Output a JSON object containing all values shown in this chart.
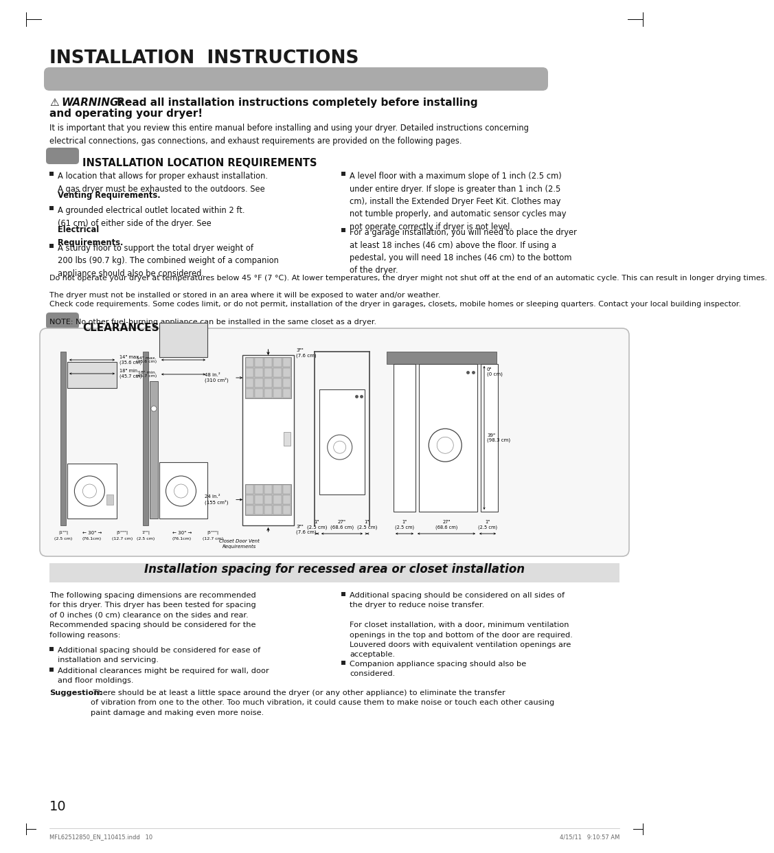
{
  "bg_color": "#ffffff",
  "title": "INSTALLATION  INSTRUCTIONS",
  "gray_bar_color": "#aaaaaa",
  "warning_symbol": "⚠",
  "warning_bold": "WARNING:",
  "warning_rest": " Read all installation instructions completely before installing",
  "warning_line2": "and operating your dryer!",
  "warning_body": "It is important that you review this entire manual before installing and using your dryer. Detailed instructions concerning\nelectrical connections, gas connections, and exhaust requirements are provided on the following pages.",
  "install_loc_header": "INSTALLATION LOCATION REQUIREMENTS",
  "b1l_plain": "A location that allows for proper exhaust installation.\nA gas dryer must be exhausted to the outdoors. See",
  "b1l_bold": "Venting Requirements.",
  "b2l_plain1": "A grounded electrical outlet located within 2 ft.\n(61 cm) of either side of the dryer. See ",
  "b2l_bold": "Electrical\nRequirements.",
  "b3l": "A sturdy floor to support the total dryer weight of\n200 lbs (90.7 kg). The combined weight of a companion\nappliance should also be considered.",
  "b1r": "A level floor with a maximum slope of 1 inch (2.5 cm)\nunder entire dryer. If slope is greater than 1 inch (2.5\ncm), install the Extended Dryer Feet Kit. Clothes may\nnot tumble properly, and automatic sensor cycles may\nnot operate correctly if dryer is not level.",
  "b2r": "For a garage installation, you will need to place the dryer\nat least 18 inches (46 cm) above the floor. If using a\npedestal, you will need 18 inches (46 cm) to the bottom\nof the dryer.",
  "para1": "Do not operate your dryer at temperatures below 45 °F (7 °C). At lower temperatures, the dryer might not shut off at the end of an automatic cycle. This can result in longer drying times.",
  "para2": "The dryer must not be installed or stored in an area where it will be exposed to water and/or weather.",
  "para3": "Check code requirements. Some codes limit, or do not permit, installation of the dryer in garages, closets, mobile homes or sleeping quarters. Contact your local building inspector.",
  "para4": "NOTE: No other fuel-burning appliance can be installed in the same closet as a dryer.",
  "clearances_header": "CLEARANCES",
  "recessed_header": "Installation spacing for recessed area or closet installation",
  "rec_body1": "The following spacing dimensions are recommended\nfor this dryer. This dryer has been tested for spacing\nof 0 inches (0 cm) clearance on the sides and rear.\nRecommended spacing should be considered for the\nfollowing reasons:",
  "rec_b1": "Additional spacing should be considered for ease of\ninstallation and servicing.",
  "rec_b2": "Additional clearances might be required for wall, door\nand floor moldings.",
  "suggestion_bold": "Suggestion:",
  "suggestion_rest": " There should be at least a little space around the dryer (or any other appliance) to eliminate the transfer\nof vibration from one to the other. Too much vibration, it could cause them to make noise or touch each other causing\npaint damage and making even more noise.",
  "rec_rb1": "Additional spacing should be considered on all sides of\nthe dryer to reduce noise transfer.\n\nFor closet installation, with a door, minimum ventilation\nopenings in the top and bottom of the door are required.\nLouvered doors with equivalent ventilation openings are\nacceptable.",
  "rec_rb2": "Companion appliance spacing should also be\nconsidered.",
  "footer_left": "MFL62512850_EN_110415.indd   10",
  "footer_right": "4/15/11   9:10:57 AM",
  "page_number": "10"
}
